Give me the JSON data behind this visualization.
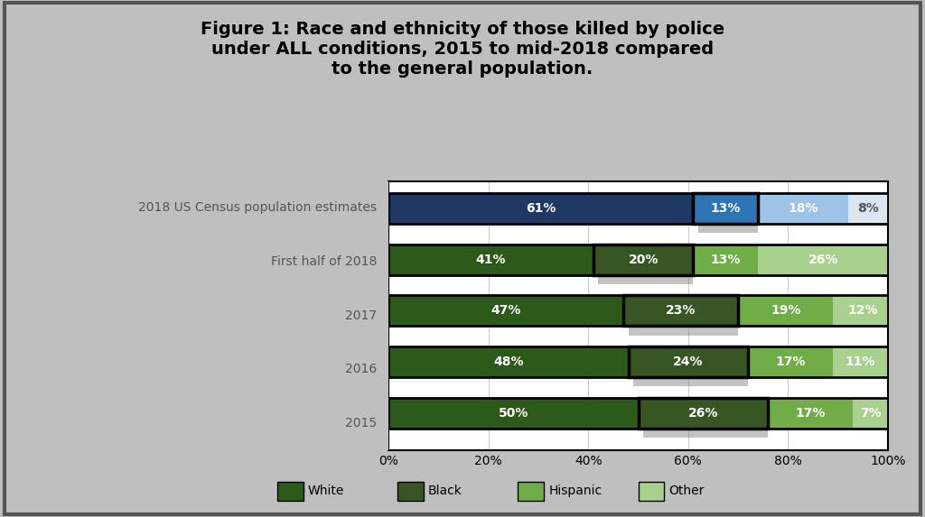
{
  "title": "Figure 1: Race and ethnicity of those killed by police\nunder ALL conditions, 2015 to mid-2018 compared\nto the general population.",
  "categories": [
    "2018 US Census population estimates",
    "First half of 2018",
    "2017",
    "2016",
    "2015"
  ],
  "series_white": [
    61,
    41,
    47,
    48,
    50
  ],
  "series_black": [
    13,
    20,
    23,
    24,
    26
  ],
  "series_hispanic": [
    18,
    13,
    19,
    17,
    17
  ],
  "series_other": [
    8,
    26,
    12,
    11,
    7
  ],
  "white_colors": [
    "#1f3864",
    "#2d5a1b",
    "#2d5a1b",
    "#2d5a1b",
    "#2d5a1b"
  ],
  "black_colors": [
    "#2e75b6",
    "#375623",
    "#375623",
    "#375623",
    "#375623"
  ],
  "hispanic_colors": [
    "#9dc3e6",
    "#70ad47",
    "#70ad47",
    "#70ad47",
    "#70ad47"
  ],
  "other_colors": [
    "#dce6f1",
    "#a9d18e",
    "#a9d18e",
    "#a9d18e",
    "#a9d18e"
  ],
  "background_color": "#bfbfbf",
  "chart_background": "#ffffff",
  "bar_height": 0.6,
  "title_fontsize": 14,
  "tick_fontsize": 10,
  "label_fontsize": 10,
  "legend_fontsize": 10,
  "series_names": [
    "White",
    "Black",
    "Hispanic",
    "Other"
  ]
}
